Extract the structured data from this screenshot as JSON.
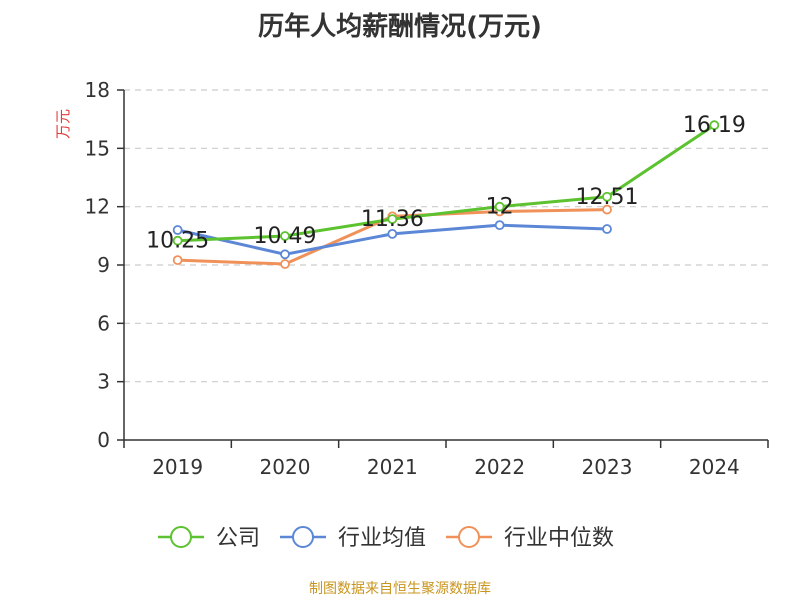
{
  "chart_data": {
    "type": "line",
    "title": "历年人均薪酬情况(万元)",
    "ylabel": "万元",
    "xlabel": "",
    "categories": [
      "2019",
      "2020",
      "2021",
      "2022",
      "2023",
      "2024"
    ],
    "ylim": [
      0,
      18
    ],
    "yticks": [
      0,
      3,
      6,
      9,
      12,
      15,
      18
    ],
    "grid": true,
    "legend_position": "bottom",
    "series": [
      {
        "name": "公司",
        "color": "#5cc22f",
        "values": [
          10.25,
          10.49,
          11.36,
          12,
          12.51,
          16.19
        ],
        "labels": [
          "10.25",
          "10.49",
          "11.36",
          "12",
          "12.51",
          "16.19"
        ]
      },
      {
        "name": "行业均值",
        "color": "#5b87d6",
        "values": [
          10.8,
          9.55,
          10.6,
          11.05,
          10.85,
          null
        ]
      },
      {
        "name": "行业中位数",
        "color": "#f0915a",
        "values": [
          9.25,
          9.05,
          11.5,
          11.75,
          11.85,
          null
        ]
      }
    ]
  },
  "source": "制图数据来自恒生聚源数据库",
  "colors": {
    "unit_label": "#e03c3c",
    "axis": "#333333",
    "grid": "#cccccc"
  }
}
